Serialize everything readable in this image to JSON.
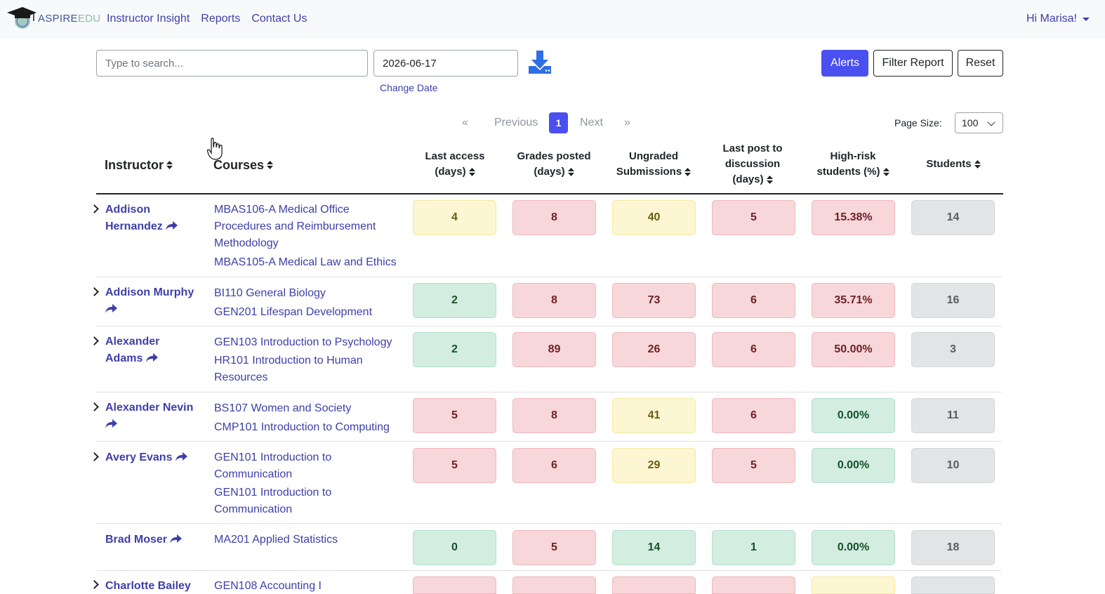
{
  "brand": {
    "part1": "ASPIRE",
    "part2": "EDU"
  },
  "nav": {
    "links": [
      "Instructor Insight",
      "Reports",
      "Contact Us"
    ],
    "user": "Hi Marisa!"
  },
  "toolbar": {
    "search_placeholder": "Type to search...",
    "date_value": "2026-06-17",
    "change_date": "Change Date",
    "alerts": "Alerts",
    "filter_report": "Filter Report",
    "reset": "Reset"
  },
  "pagination": {
    "first": "«",
    "previous": "Previous",
    "current": "1",
    "next": "Next",
    "last": "»",
    "page_size_label": "Page Size:",
    "page_size": "100"
  },
  "columns": {
    "instructor": "Instructor",
    "courses": "Courses",
    "last_access": [
      "Last access",
      "(days)"
    ],
    "grades_posted": [
      "Grades posted",
      "(days)"
    ],
    "ungraded": [
      "Ungraded",
      "Submissions"
    ],
    "last_post": [
      "Last post to",
      "discussion",
      "(days)"
    ],
    "high_risk": [
      "High-risk",
      "students (%)"
    ],
    "students": "Students"
  },
  "colors": {
    "yellow": "#fcf6d2",
    "red": "#f7d7da",
    "green": "#d3ede0",
    "gray": "#e3e4e5",
    "accent": "#4a4ff0",
    "link": "#3e3fa8"
  },
  "rows": [
    {
      "name_lines": [
        "Addison",
        "Hernandez"
      ],
      "courses": [
        [
          "MBAS106-A Medical Office",
          "Procedures and Reimbursement",
          "Methodology"
        ],
        [
          "MBAS105-A Medical Law and Ethics"
        ]
      ],
      "values": [
        "4",
        "8",
        "40",
        "5",
        "15.38%",
        "14"
      ],
      "status": [
        "yellow",
        "red",
        "yellow",
        "red",
        "red",
        "gray"
      ]
    },
    {
      "name_lines": [
        "Addison Murphy",
        ""
      ],
      "courses": [
        [
          "BI110 General Biology"
        ],
        [
          "GEN201 Lifespan Development"
        ]
      ],
      "values": [
        "2",
        "8",
        "73",
        "6",
        "35.71%",
        "16"
      ],
      "status": [
        "green",
        "red",
        "red",
        "red",
        "red",
        "gray"
      ]
    },
    {
      "name_lines": [
        "Alexander",
        "Adams"
      ],
      "courses": [
        [
          "GEN103 Introduction to Psychology"
        ],
        [
          "HR101 Introduction to Human",
          "Resources"
        ]
      ],
      "values": [
        "2",
        "89",
        "26",
        "6",
        "50.00%",
        "3"
      ],
      "status": [
        "green",
        "red",
        "red",
        "red",
        "red",
        "gray"
      ]
    },
    {
      "name_lines": [
        "Alexander Nevin",
        ""
      ],
      "courses": [
        [
          "BS107 Women and Society"
        ],
        [
          "CMP101 Introduction to Computing"
        ]
      ],
      "values": [
        "5",
        "8",
        "41",
        "6",
        "0.00%",
        "11"
      ],
      "status": [
        "red",
        "red",
        "yellow",
        "red",
        "green",
        "gray"
      ]
    },
    {
      "name_lines": [
        "Avery Evans"
      ],
      "courses": [
        [
          "GEN101 Introduction to",
          "Communication"
        ],
        [
          "GEN101 Introduction to",
          "Communication"
        ]
      ],
      "values": [
        "5",
        "6",
        "29",
        "5",
        "0.00%",
        "10"
      ],
      "status": [
        "red",
        "red",
        "yellow",
        "red",
        "green",
        "gray"
      ]
    },
    {
      "name_lines": [
        "Brad Moser"
      ],
      "courses": [
        [
          "MA201 Applied Statistics"
        ]
      ],
      "values": [
        "0",
        "5",
        "14",
        "1",
        "0.00%",
        "18"
      ],
      "status": [
        "green",
        "red",
        "green",
        "green",
        "green",
        "gray"
      ]
    },
    {
      "name_lines": [
        "Charlotte Bailey"
      ],
      "courses": [
        [
          "GEN108 Accounting I"
        ]
      ],
      "values": [
        "",
        "",
        "",
        "",
        "",
        ""
      ],
      "status": [
        "red",
        "red",
        "red",
        "red",
        "yellow",
        "gray"
      ]
    }
  ],
  "icons": {
    "download": "download-icon",
    "sort": "sort-icon",
    "share": "share-icon",
    "expand": "chevron-right-icon"
  }
}
